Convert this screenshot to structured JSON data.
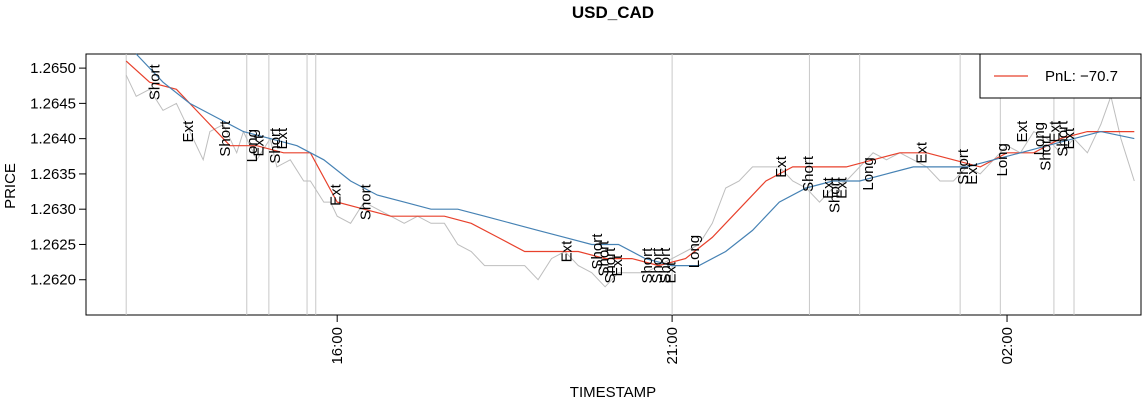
{
  "chart_data": {
    "type": "line",
    "title": "USD_CAD",
    "xlabel": "TIMESTAMP",
    "ylabel": "PRICE",
    "x_ticks": [
      {
        "label": "16:00",
        "hours": 16
      },
      {
        "label": "21:00",
        "hours": 21
      },
      {
        "label": "02:00",
        "hours": 26
      }
    ],
    "xlim_hours": [
      12.25,
      28.0
    ],
    "ylim": [
      1.2615,
      1.2652
    ],
    "y_ticks": [
      1.262,
      1.2625,
      1.263,
      1.2635,
      1.264,
      1.2645,
      1.265
    ],
    "y_tick_labels": [
      "1.2620",
      "1.2625",
      "1.2630",
      "1.2635",
      "1.2640",
      "1.2645",
      "1.2650"
    ],
    "grid": false,
    "legend": {
      "position": "top-right",
      "entries": [
        {
          "label": "PnL: −70.7",
          "color": "#e8412c"
        }
      ]
    },
    "series": [
      {
        "name": "price",
        "color": "#bebebe",
        "points": [
          [
            12.85,
            1.2649
          ],
          [
            13.0,
            1.2646
          ],
          [
            13.2,
            1.2647
          ],
          [
            13.4,
            1.2644
          ],
          [
            13.6,
            1.2645
          ],
          [
            13.8,
            1.2641
          ],
          [
            14.0,
            1.2637
          ],
          [
            14.1,
            1.2641
          ],
          [
            14.3,
            1.2642
          ],
          [
            14.5,
            1.2638
          ],
          [
            14.6,
            1.2641
          ],
          [
            14.8,
            1.2637
          ],
          [
            15.0,
            1.264
          ],
          [
            15.1,
            1.2636
          ],
          [
            15.3,
            1.2637
          ],
          [
            15.5,
            1.2634
          ],
          [
            15.6,
            1.2634
          ],
          [
            15.8,
            1.2631
          ],
          [
            15.9,
            1.2631
          ],
          [
            16.0,
            1.2629
          ],
          [
            16.2,
            1.2628
          ],
          [
            16.4,
            1.2631
          ],
          [
            16.6,
            1.263
          ],
          [
            16.8,
            1.2629
          ],
          [
            17.0,
            1.2628
          ],
          [
            17.2,
            1.2629
          ],
          [
            17.4,
            1.2628
          ],
          [
            17.6,
            1.2628
          ],
          [
            17.8,
            1.2625
          ],
          [
            18.0,
            1.2624
          ],
          [
            18.2,
            1.2622
          ],
          [
            18.4,
            1.2622
          ],
          [
            18.6,
            1.2622
          ],
          [
            18.8,
            1.2622
          ],
          [
            19.0,
            1.262
          ],
          [
            19.2,
            1.2623
          ],
          [
            19.4,
            1.2624
          ],
          [
            19.6,
            1.2622
          ],
          [
            19.8,
            1.2621
          ],
          [
            20.0,
            1.2619
          ],
          [
            20.2,
            1.2621
          ],
          [
            20.4,
            1.2621
          ],
          [
            20.6,
            1.2621
          ],
          [
            20.8,
            1.2622
          ],
          [
            21.0,
            1.2623
          ],
          [
            21.2,
            1.2624
          ],
          [
            21.4,
            1.2625
          ],
          [
            21.6,
            1.2628
          ],
          [
            21.8,
            1.2633
          ],
          [
            22.0,
            1.2634
          ],
          [
            22.2,
            1.2636
          ],
          [
            22.4,
            1.2636
          ],
          [
            22.6,
            1.2636
          ],
          [
            22.8,
            1.2634
          ],
          [
            23.0,
            1.2633
          ],
          [
            23.2,
            1.2631
          ],
          [
            23.4,
            1.2633
          ],
          [
            23.6,
            1.2634
          ],
          [
            23.8,
            1.2636
          ],
          [
            24.0,
            1.2638
          ],
          [
            24.2,
            1.2637
          ],
          [
            24.4,
            1.2638
          ],
          [
            24.6,
            1.2637
          ],
          [
            24.8,
            1.2636
          ],
          [
            25.0,
            1.2634
          ],
          [
            25.2,
            1.2634
          ],
          [
            25.4,
            1.2636
          ],
          [
            25.6,
            1.2635
          ],
          [
            25.8,
            1.2637
          ],
          [
            26.0,
            1.2639
          ],
          [
            26.2,
            1.2638
          ],
          [
            26.4,
            1.2641
          ],
          [
            26.6,
            1.264
          ],
          [
            26.8,
            1.2638
          ],
          [
            27.0,
            1.264
          ],
          [
            27.2,
            1.2638
          ],
          [
            27.4,
            1.2642
          ],
          [
            27.55,
            1.2646
          ],
          [
            27.7,
            1.264
          ],
          [
            27.8,
            1.2637
          ],
          [
            27.9,
            1.2634
          ]
        ]
      },
      {
        "name": "fast-ma",
        "color": "#e8412c",
        "points": [
          [
            12.85,
            1.2651
          ],
          [
            13.2,
            1.2648
          ],
          [
            13.6,
            1.2647
          ],
          [
            14.0,
            1.2643
          ],
          [
            14.4,
            1.2639
          ],
          [
            14.8,
            1.2639
          ],
          [
            15.2,
            1.2638
          ],
          [
            15.6,
            1.2638
          ],
          [
            16.0,
            1.2631
          ],
          [
            16.4,
            1.263
          ],
          [
            16.8,
            1.2629
          ],
          [
            17.2,
            1.2629
          ],
          [
            17.6,
            1.2629
          ],
          [
            18.0,
            1.2628
          ],
          [
            18.4,
            1.2626
          ],
          [
            18.8,
            1.2624
          ],
          [
            19.2,
            1.2624
          ],
          [
            19.6,
            1.2624
          ],
          [
            20.0,
            1.2623
          ],
          [
            20.4,
            1.2623
          ],
          [
            20.8,
            1.2622
          ],
          [
            21.2,
            1.2623
          ],
          [
            21.6,
            1.2626
          ],
          [
            22.0,
            1.263
          ],
          [
            22.4,
            1.2634
          ],
          [
            22.8,
            1.2636
          ],
          [
            23.2,
            1.2636
          ],
          [
            23.6,
            1.2636
          ],
          [
            24.0,
            1.2637
          ],
          [
            24.4,
            1.2638
          ],
          [
            24.8,
            1.2638
          ],
          [
            25.2,
            1.2637
          ],
          [
            25.6,
            1.2636
          ],
          [
            26.0,
            1.2638
          ],
          [
            26.4,
            1.2638
          ],
          [
            26.8,
            1.264
          ],
          [
            27.2,
            1.2641
          ],
          [
            27.6,
            1.2641
          ],
          [
            27.9,
            1.2641
          ]
        ]
      },
      {
        "name": "slow-ma",
        "color": "#4682b4",
        "points": [
          [
            13.0,
            1.2652
          ],
          [
            13.4,
            1.2648
          ],
          [
            13.8,
            1.2645
          ],
          [
            14.2,
            1.2643
          ],
          [
            14.6,
            1.2641
          ],
          [
            15.0,
            1.264
          ],
          [
            15.4,
            1.2639
          ],
          [
            15.8,
            1.2637
          ],
          [
            16.2,
            1.2634
          ],
          [
            16.6,
            1.2632
          ],
          [
            17.0,
            1.2631
          ],
          [
            17.4,
            1.263
          ],
          [
            17.8,
            1.263
          ],
          [
            18.2,
            1.2629
          ],
          [
            18.6,
            1.2628
          ],
          [
            19.0,
            1.2627
          ],
          [
            19.4,
            1.2626
          ],
          [
            19.8,
            1.2625
          ],
          [
            20.2,
            1.2625
          ],
          [
            20.6,
            1.2623
          ],
          [
            21.0,
            1.2622
          ],
          [
            21.4,
            1.2622
          ],
          [
            21.8,
            1.2624
          ],
          [
            22.2,
            1.2627
          ],
          [
            22.6,
            1.2631
          ],
          [
            23.0,
            1.2633
          ],
          [
            23.4,
            1.2634
          ],
          [
            23.8,
            1.2634
          ],
          [
            24.2,
            1.2635
          ],
          [
            24.6,
            1.2636
          ],
          [
            25.0,
            1.2636
          ],
          [
            25.4,
            1.2636
          ],
          [
            25.8,
            1.2637
          ],
          [
            26.2,
            1.2638
          ],
          [
            26.6,
            1.2639
          ],
          [
            27.0,
            1.264
          ],
          [
            27.4,
            1.2641
          ],
          [
            27.9,
            1.264
          ]
        ]
      }
    ],
    "trade_lines_hours": [
      12.85,
      14.65,
      14.98,
      15.55,
      15.68,
      21.0,
      23.05,
      23.8,
      25.3,
      25.9,
      26.7,
      27.0
    ],
    "trade_labels": [
      {
        "text": "Short",
        "hours": 13.35,
        "y": 1.2648
      },
      {
        "text": "Ext",
        "hours": 13.85,
        "y": 1.2641
      },
      {
        "text": "Short",
        "hours": 14.4,
        "y": 1.264
      },
      {
        "text": "Long",
        "hours": 14.8,
        "y": 1.2639
      },
      {
        "text": "Ext",
        "hours": 14.9,
        "y": 1.2639
      },
      {
        "text": "Short",
        "hours": 15.15,
        "y": 1.2639
      },
      {
        "text": "Ext",
        "hours": 15.25,
        "y": 1.264
      },
      {
        "text": "Ext",
        "hours": 16.05,
        "y": 1.2632
      },
      {
        "text": "Short",
        "hours": 16.5,
        "y": 1.2631
      },
      {
        "text": "Ext",
        "hours": 19.5,
        "y": 1.2624
      },
      {
        "text": "Short",
        "hours": 19.95,
        "y": 1.2624
      },
      {
        "text": "Short",
        "hours": 20.05,
        "y": 1.2623
      },
      {
        "text": "Short",
        "hours": 20.15,
        "y": 1.2622
      },
      {
        "text": "Ext",
        "hours": 20.25,
        "y": 1.2622
      },
      {
        "text": "Short",
        "hours": 20.7,
        "y": 1.2622
      },
      {
        "text": "Short",
        "hours": 20.85,
        "y": 1.2622
      },
      {
        "text": "Short",
        "hours": 20.97,
        "y": 1.2622
      },
      {
        "text": "Ext",
        "hours": 21.05,
        "y": 1.2621
      },
      {
        "text": "Long",
        "hours": 21.4,
        "y": 1.2624
      },
      {
        "text": "Ext",
        "hours": 22.7,
        "y": 1.2636
      },
      {
        "text": "Short",
        "hours": 23.1,
        "y": 1.2635
      },
      {
        "text": "Ext",
        "hours": 23.4,
        "y": 1.2633
      },
      {
        "text": "Short",
        "hours": 23.5,
        "y": 1.2632
      },
      {
        "text": "Ext",
        "hours": 23.6,
        "y": 1.2633
      },
      {
        "text": "Long",
        "hours": 24.0,
        "y": 1.2635
      },
      {
        "text": "Ext",
        "hours": 24.8,
        "y": 1.2638
      },
      {
        "text": "Short",
        "hours": 25.42,
        "y": 1.2636
      },
      {
        "text": "Ext",
        "hours": 25.55,
        "y": 1.2635
      },
      {
        "text": "Long",
        "hours": 26.0,
        "y": 1.2637
      },
      {
        "text": "Ext",
        "hours": 26.3,
        "y": 1.2641
      },
      {
        "text": "Long",
        "hours": 26.55,
        "y": 1.264
      },
      {
        "text": "Short",
        "hours": 26.65,
        "y": 1.2638
      },
      {
        "text": "Ext",
        "hours": 26.78,
        "y": 1.2641
      },
      {
        "text": "Short",
        "hours": 26.9,
        "y": 1.264
      },
      {
        "text": "Ext",
        "hours": 27.0,
        "y": 1.264
      }
    ]
  }
}
